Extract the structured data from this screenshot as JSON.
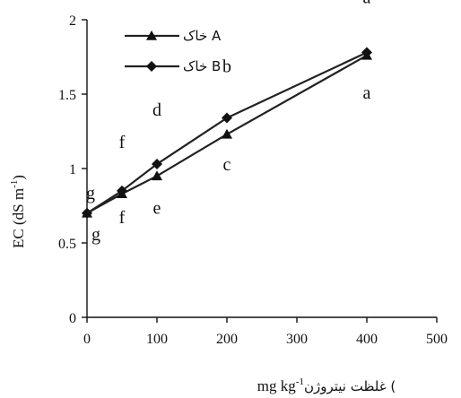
{
  "chart_data": {
    "type": "line",
    "title": "",
    "ylabel": "EC (dS m-1)",
    "ylabel_parts": {
      "main": "EC (dS m",
      "sup": "-1",
      "close": ")"
    },
    "xlabel": "غلظت نيتروژن (mg kg-1)",
    "xlabel_parts": {
      "persian": "غلظت نيتروژن (",
      "unit": "mg kg",
      "sup": "-1",
      "close": ")"
    },
    "xlim": [
      0,
      500
    ],
    "ylim": [
      0,
      2
    ],
    "x_ticks": [
      0,
      100,
      200,
      300,
      400,
      500
    ],
    "y_ticks": [
      0,
      0.5,
      1,
      1.5,
      2
    ],
    "y_tick_labels": [
      "0",
      "0.5",
      "1",
      "1.5",
      "2"
    ],
    "grid": false,
    "legend_position": "top-left",
    "x": [
      0,
      50,
      100,
      200,
      400
    ],
    "series": [
      {
        "name": "خاک A",
        "marker": "triangle",
        "values": [
          0.7,
          0.83,
          0.95,
          1.23,
          1.76
        ],
        "labels": [
          "g",
          "f",
          "e",
          "c",
          "a"
        ]
      },
      {
        "name": "خاک B",
        "marker": "diamond",
        "values": [
          0.7,
          0.85,
          1.03,
          1.34,
          1.78
        ],
        "labels": [
          "g",
          "f",
          "d",
          "b",
          "a"
        ]
      }
    ]
  },
  "colors": {
    "line": "#222222",
    "marker": "#111111",
    "axis": "#111111"
  }
}
